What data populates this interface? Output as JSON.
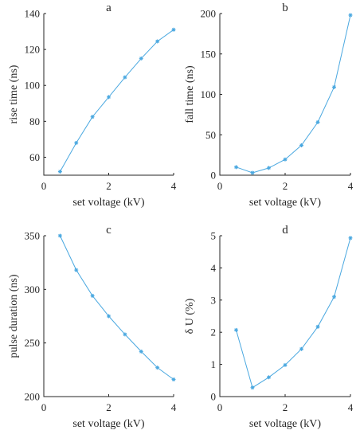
{
  "colors": {
    "series": "#4aa8e0",
    "axis": "#262626"
  },
  "chart_data": [
    {
      "type": "line",
      "title": "a",
      "xlabel": "set voltage (kV)",
      "ylabel": "rise time (ns)",
      "xlim": [
        0,
        4
      ],
      "ylim": [
        50,
        140
      ],
      "x_ticks": [
        0,
        2,
        4
      ],
      "x_tick_labels": [
        "0",
        "2",
        "4"
      ],
      "y_ticks": [
        60,
        80,
        100,
        120,
        140
      ],
      "y_tick_labels": [
        "60",
        "80",
        "100",
        "120",
        "140"
      ],
      "x": [
        0.5,
        1.0,
        1.5,
        2.0,
        2.5,
        3.0,
        3.5,
        4.0
      ],
      "series": [
        {
          "values": [
            52.0,
            68.0,
            82.5,
            93.5,
            104.5,
            115.0,
            124.5,
            131.0
          ]
        }
      ]
    },
    {
      "type": "line",
      "title": "b",
      "xlabel": "set voltage (kV)",
      "ylabel": "fall time (ns)",
      "xlim": [
        0,
        4
      ],
      "ylim": [
        0,
        200
      ],
      "x_ticks": [
        0,
        2,
        4
      ],
      "x_tick_labels": [
        "0",
        "2",
        "4"
      ],
      "y_ticks": [
        0,
        50,
        100,
        150,
        200
      ],
      "y_tick_labels": [
        "0",
        "50",
        "100",
        "150",
        "200"
      ],
      "x": [
        0.5,
        1.0,
        1.5,
        2.0,
        2.5,
        3.0,
        3.5,
        4.0
      ],
      "series": [
        {
          "values": [
            10.0,
            3.0,
            9.0,
            19.5,
            37.0,
            65.5,
            109.0,
            198.0
          ]
        }
      ]
    },
    {
      "type": "line",
      "title": "c",
      "xlabel": "set voltage (kV)",
      "ylabel": "pulse duration (ns)",
      "xlim": [
        0,
        4
      ],
      "ylim": [
        200,
        350
      ],
      "x_ticks": [
        0,
        2,
        4
      ],
      "x_tick_labels": [
        "0",
        "2",
        "4"
      ],
      "y_ticks": [
        200,
        250,
        300,
        350
      ],
      "y_tick_labels": [
        "200",
        "250",
        "300",
        "350"
      ],
      "x": [
        0.5,
        1.0,
        1.5,
        2.0,
        2.5,
        3.0,
        3.5,
        4.0
      ],
      "series": [
        {
          "values": [
            350.0,
            318.0,
            294.0,
            275.0,
            258.0,
            242.0,
            227.0,
            216.0
          ]
        }
      ]
    },
    {
      "type": "line",
      "title": "d",
      "xlabel": "set voltage (kV)",
      "ylabel": "δ U (%)",
      "xlim": [
        0,
        4
      ],
      "ylim": [
        0,
        5
      ],
      "x_ticks": [
        0,
        2,
        4
      ],
      "x_tick_labels": [
        "0",
        "2",
        "4"
      ],
      "y_ticks": [
        0,
        1,
        2,
        3,
        4,
        5
      ],
      "y_tick_labels": [
        "0",
        "1",
        "2",
        "3",
        "4",
        "5"
      ],
      "x": [
        0.5,
        1.0,
        1.5,
        2.0,
        2.5,
        3.0,
        3.5,
        4.0
      ],
      "series": [
        {
          "values": [
            2.07,
            0.28,
            0.6,
            0.98,
            1.48,
            2.17,
            3.1,
            4.93
          ]
        }
      ]
    }
  ]
}
